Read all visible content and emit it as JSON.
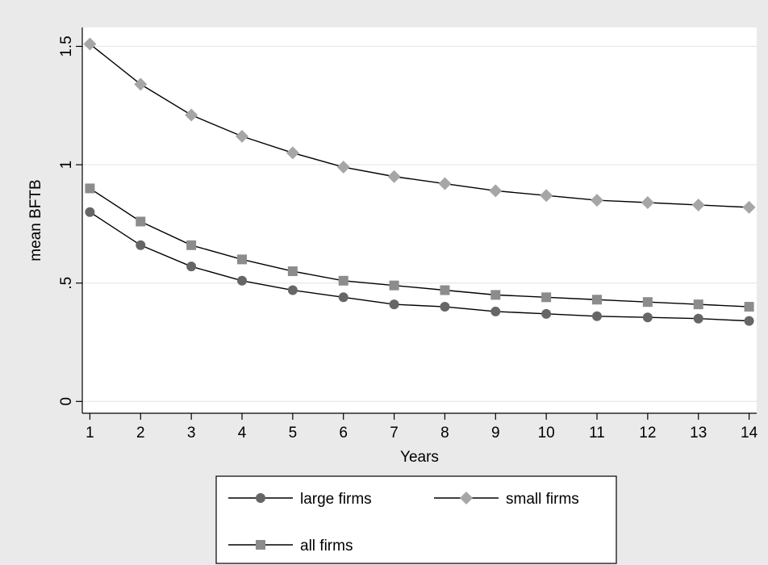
{
  "chart_data": {
    "type": "line",
    "title": "",
    "xlabel": "Years",
    "ylabel": "mean BFTB",
    "x": [
      1,
      2,
      3,
      4,
      5,
      6,
      7,
      8,
      9,
      10,
      11,
      12,
      13,
      14
    ],
    "xticks": [
      "1",
      "2",
      "3",
      "4",
      "5",
      "6",
      "7",
      "8",
      "9",
      "10",
      "11",
      "12",
      "13",
      "14"
    ],
    "yticks": [
      {
        "value": 0,
        "label": "0"
      },
      {
        "value": 0.5,
        "label": ".5"
      },
      {
        "value": 1,
        "label": "1"
      },
      {
        "value": 1.5,
        "label": "1.5"
      }
    ],
    "xlim": [
      0.85,
      14.15
    ],
    "ylim": [
      -0.05,
      1.58
    ],
    "grid": "horizontal",
    "legend_position": "bottom",
    "series": [
      {
        "name": "large firms",
        "marker": "circle",
        "color": "#666666",
        "values": [
          0.8,
          0.66,
          0.57,
          0.51,
          0.47,
          0.44,
          0.41,
          0.4,
          0.38,
          0.37,
          0.36,
          0.355,
          0.35,
          0.34
        ]
      },
      {
        "name": "small firms",
        "marker": "diamond",
        "color": "#a6a6a6",
        "values": [
          1.51,
          1.34,
          1.21,
          1.12,
          1.05,
          0.99,
          0.95,
          0.92,
          0.89,
          0.87,
          0.85,
          0.84,
          0.83,
          0.82
        ]
      },
      {
        "name": "all firms",
        "marker": "square",
        "color": "#8c8c8c",
        "values": [
          0.9,
          0.76,
          0.66,
          0.6,
          0.55,
          0.51,
          0.49,
          0.47,
          0.45,
          0.44,
          0.43,
          0.42,
          0.41,
          0.4
        ]
      }
    ]
  }
}
